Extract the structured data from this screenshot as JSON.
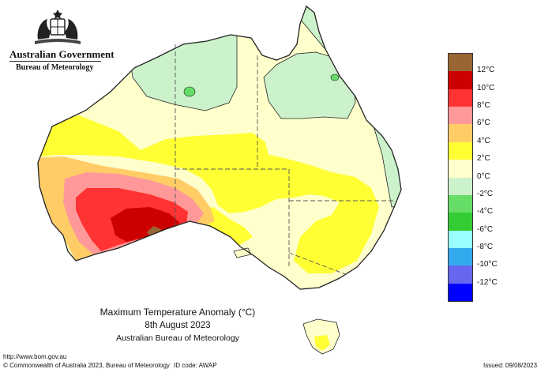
{
  "header": {
    "government": "Australian Government",
    "bureau": "Bureau of Meteorology"
  },
  "map": {
    "title": "Maximum Temperature Anomaly (°C)",
    "date": "8th August 2023",
    "source": "Australian Bureau of Meteorology",
    "colors": {
      "warm_4_6": "#ffcc66",
      "warm_2_4": "#ffff33",
      "neutral_0_2": "#ffffcc",
      "cool_0_m2": "#ccf2cc",
      "cool_m2_m4": "#66dd66",
      "warm_6_8": "#ff9999",
      "warm_8_10": "#ff3333",
      "warm_10_12": "#cc0000",
      "warm_12_plus": "#996633",
      "outline": "#222222",
      "border": "#555555"
    }
  },
  "legend": {
    "items": [
      {
        "label": "12°C",
        "color": "#996633"
      },
      {
        "label": "10°C",
        "color": "#cc0000"
      },
      {
        "label": "8°C",
        "color": "#ff3333"
      },
      {
        "label": "6°C",
        "color": "#ff9999"
      },
      {
        "label": "4°C",
        "color": "#ffcc66"
      },
      {
        "label": "2°C",
        "color": "#ffff33"
      },
      {
        "label": "0°C",
        "color": "#ffffcc"
      },
      {
        "label": "-2°C",
        "color": "#ccf2cc"
      },
      {
        "label": "-4°C",
        "color": "#66dd66"
      },
      {
        "label": "-6°C",
        "color": "#33cc33"
      },
      {
        "label": "-8°C",
        "color": "#99ffff"
      },
      {
        "label": "-10°C",
        "color": "#33aaee"
      },
      {
        "label": "-12°C",
        "color": "#6666ee"
      },
      {
        "label": "",
        "color": "#0000ff"
      }
    ]
  },
  "footer": {
    "url": "http://www.bom.gov.au",
    "copyright": "© Commonwealth of Australia 2023, Bureau of Meteorology",
    "id_code": "ID code: AWAP",
    "issued": "Issued: 09/08/2023"
  }
}
